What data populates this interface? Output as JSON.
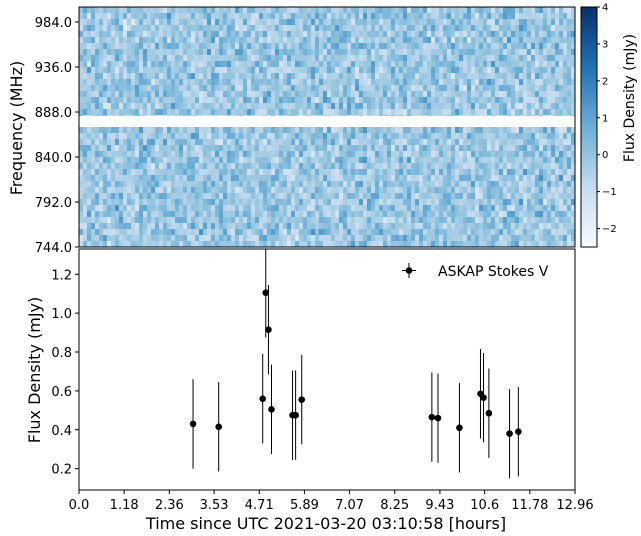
{
  "chart_data": [
    {
      "type": "heatmap",
      "panel": "dynamic-spectrum",
      "ylabel": "Frequency (MHz)",
      "y_ticks": [
        "744.0",
        "792.0",
        "840.0",
        "888.0",
        "936.0",
        "984.0"
      ],
      "y_tick_values": [
        744.0,
        792.0,
        840.0,
        888.0,
        936.0,
        984.0
      ],
      "ylim": [
        744.0,
        1000.0
      ],
      "xlim": [
        0.0,
        12.96
      ],
      "masked_band_mhz": [
        872.0,
        884.0
      ],
      "colormap": "Blues",
      "colorbar": {
        "label": "Flux Density (mJy)",
        "ticks": [
          "−2",
          "−1",
          "0",
          "1",
          "2",
          "3",
          "4"
        ],
        "tick_values": [
          -2,
          -1,
          0,
          1,
          2,
          3,
          4
        ],
        "range": [
          -2.5,
          4.0
        ]
      }
    },
    {
      "type": "scatter",
      "panel": "light-curve",
      "legend": "ASKAP Stokes V",
      "legend_position": "top-right",
      "xlabel": "Time since UTC 2021-03-20 03:10:58 [hours]",
      "ylabel": "Flux Density (mJy)",
      "x_ticks": [
        "0.0",
        "1.18",
        "2.36",
        "3.53",
        "4.71",
        "5.89",
        "7.07",
        "8.25",
        "9.43",
        "10.6",
        "11.78",
        "12.96"
      ],
      "x_tick_values": [
        0.0,
        1.18,
        2.36,
        3.53,
        4.71,
        5.89,
        7.07,
        8.25,
        9.43,
        10.6,
        11.78,
        12.96
      ],
      "y_ticks": [
        "0.2",
        "0.4",
        "0.6",
        "0.8",
        "1.0",
        "1.2"
      ],
      "y_tick_values": [
        0.2,
        0.4,
        0.6,
        0.8,
        1.0,
        1.2
      ],
      "xlim": [
        0.0,
        12.96
      ],
      "ylim": [
        0.09,
        1.33
      ],
      "points": [
        {
          "x": 2.98,
          "y": 0.43,
          "err": 0.23
        },
        {
          "x": 3.65,
          "y": 0.415,
          "err": 0.23
        },
        {
          "x": 4.8,
          "y": 0.56,
          "err": 0.23
        },
        {
          "x": 4.88,
          "y": 1.105,
          "err": 0.23
        },
        {
          "x": 4.95,
          "y": 0.915,
          "err": 0.23
        },
        {
          "x": 5.03,
          "y": 0.505,
          "err": 0.23
        },
        {
          "x": 5.58,
          "y": 0.475,
          "err": 0.23
        },
        {
          "x": 5.66,
          "y": 0.475,
          "err": 0.23
        },
        {
          "x": 5.82,
          "y": 0.555,
          "err": 0.23
        },
        {
          "x": 9.22,
          "y": 0.465,
          "err": 0.23
        },
        {
          "x": 9.38,
          "y": 0.46,
          "err": 0.23
        },
        {
          "x": 9.94,
          "y": 0.41,
          "err": 0.23
        },
        {
          "x": 10.49,
          "y": 0.585,
          "err": 0.23
        },
        {
          "x": 10.57,
          "y": 0.565,
          "err": 0.23
        },
        {
          "x": 10.71,
          "y": 0.485,
          "err": 0.23
        },
        {
          "x": 11.25,
          "y": 0.38,
          "err": 0.23
        },
        {
          "x": 11.48,
          "y": 0.39,
          "err": 0.23
        }
      ]
    }
  ]
}
